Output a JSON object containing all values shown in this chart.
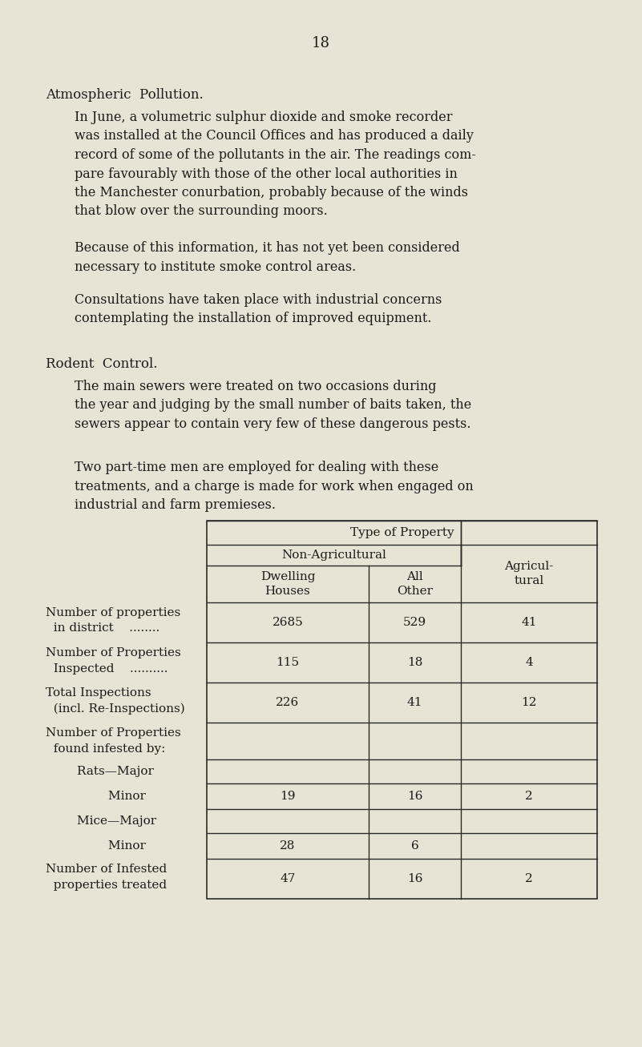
{
  "page_number": "18",
  "bg_color": "#e8e4d5",
  "text_color": "#1a1a1a",
  "page_number_fontsize": 13,
  "section1_title": "Atmospheric  Pollution.",
  "section1_title_fontsize": 12,
  "para1": "In June, a volumetric sulphur dioxide and smoke recorder\nwas installed at the Council Offices and has produced a daily\nrecord of some of the pollutants in the air. The readings com-\npare favourably with those of the other local authorities in\nthe Manchester conurbation, probably because of the winds\nthat blow over the surrounding moors.",
  "para2": "Because of this information, it has not yet been considered\nnecessary to institute smoke control areas.",
  "para3": "Consultations have taken place with industrial concerns\ncontemplating the installation of improved equipment.",
  "section2_title": "Rodent  Control.",
  "section2_title_fontsize": 12,
  "para4": "The main sewers were treated on two occasions during\nthe year and judging by the small number of baits taken, the\nsewers appear to contain very few of these dangerous pests.",
  "para5": "Two part-time men are employed for dealing with these\ntreatments, and a charge is made for work when engaged on\nindustrial and farm premieses.",
  "table_header_main": "Type of Property",
  "table_header_sub1": "Non-Agricultural",
  "table_header_col1": "Dwelling\nHouses",
  "table_header_col2": "All\nOther",
  "table_header_col3": "Agricul-\ntural",
  "table_rows": [
    {
      "label_line1": "Number of properties",
      "label_line2": "  in district    ........",
      "col1": "2685",
      "col2": "529",
      "col3": "41"
    },
    {
      "label_line1": "Number of Properties",
      "label_line2": "  Inspected    ..........",
      "col1": "115",
      "col2": "18",
      "col3": "4"
    },
    {
      "label_line1": "Total Inspections",
      "label_line2": "  (incl. Re-Inspections)",
      "col1": "226",
      "col2": "41",
      "col3": "12"
    },
    {
      "label_line1": "Number of Properties",
      "label_line2": "  found infested by:",
      "col1": "",
      "col2": "",
      "col3": ""
    },
    {
      "label_line1": "        Rats—Major",
      "label_line2": "",
      "col1": "",
      "col2": "",
      "col3": ""
    },
    {
      "label_line1": "                Minor",
      "label_line2": "",
      "col1": "19",
      "col2": "16",
      "col3": "2"
    },
    {
      "label_line1": "        Mice—Major",
      "label_line2": "",
      "col1": "",
      "col2": "",
      "col3": ""
    },
    {
      "label_line1": "                Minor",
      "label_line2": "",
      "col1": "28",
      "col2": "6",
      "col3": ""
    },
    {
      "label_line1": "Number of Infested",
      "label_line2": "  properties treated",
      "col1": "47",
      "col2": "16",
      "col3": "2"
    }
  ],
  "body_fontsize": 11.5,
  "table_fontsize": 11,
  "fig_width": 8.01,
  "fig_height": 13.07,
  "dpi": 100
}
